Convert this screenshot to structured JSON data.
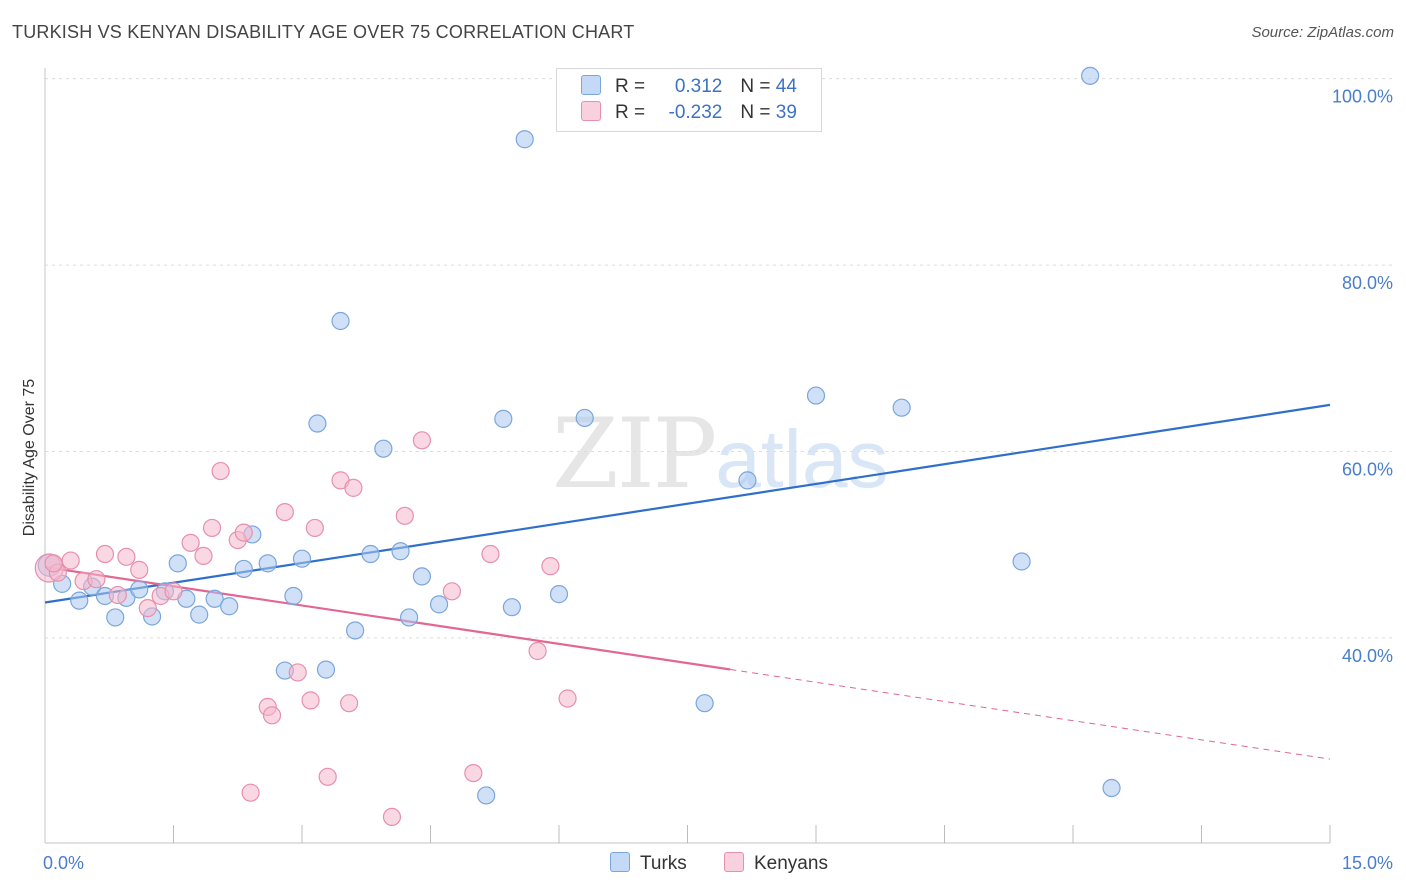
{
  "header": {
    "title": "TURKISH VS KENYAN DISABILITY AGE OVER 75 CORRELATION CHART",
    "source": "Source: ZipAtlas.com"
  },
  "watermark": {
    "zip": "ZIP",
    "atlas": "atlas"
  },
  "legend": {
    "rows": [
      {
        "r_label": "R = ",
        "r_value": "0.312",
        "n_label": "N = ",
        "n_value": "44",
        "color": "#a9c8f0"
      },
      {
        "r_label": "R = ",
        "r_value": "-0.232",
        "n_label": "N = ",
        "n_value": "39",
        "color": "#f5b8cc"
      }
    ]
  },
  "bottom_legend": {
    "turks": "Turks",
    "kenyans": "Kenyans"
  },
  "chart_data": {
    "type": "scatter",
    "title": "TURKISH VS KENYAN DISABILITY AGE OVER 75 CORRELATION CHART",
    "xlabel": "",
    "ylabel": "Disability Age Over 75",
    "xlim": [
      0,
      15
    ],
    "ylim": [
      18,
      102
    ],
    "x_tick_labels": [
      {
        "value": 0,
        "label": "0.0%"
      },
      {
        "value": 15,
        "label": "15.0%"
      }
    ],
    "x_minor_ticks": [
      1.5,
      3.0,
      4.5,
      6.0,
      7.5,
      9.0,
      10.5,
      12.0,
      13.5
    ],
    "y_ticks": [
      {
        "value": 100,
        "label": "100.0%"
      },
      {
        "value": 80,
        "label": "80.0%"
      },
      {
        "value": 60,
        "label": "60.0%"
      },
      {
        "value": 40,
        "label": "40.0%"
      }
    ],
    "series": [
      {
        "name": "Turks",
        "color": "#a9c8f0",
        "edge": "#7aa6dc",
        "line_color": "#2f6fcc",
        "trend": {
          "x0": 0,
          "y0": 43.8,
          "x1": 15,
          "y1": 65.0,
          "solid_until": 15
        },
        "points": [
          [
            0.05,
            47.8
          ],
          [
            0.2,
            45.8
          ],
          [
            0.4,
            44.0
          ],
          [
            0.55,
            45.5
          ],
          [
            0.7,
            44.5
          ],
          [
            0.82,
            42.2
          ],
          [
            0.95,
            44.3
          ],
          [
            1.1,
            45.2
          ],
          [
            1.25,
            42.3
          ],
          [
            1.4,
            45.0
          ],
          [
            1.55,
            48.0
          ],
          [
            1.65,
            44.2
          ],
          [
            1.8,
            42.5
          ],
          [
            1.98,
            44.2
          ],
          [
            2.15,
            43.4
          ],
          [
            2.32,
            47.4
          ],
          [
            2.42,
            51.1
          ],
          [
            2.6,
            48.0
          ],
          [
            2.8,
            36.5
          ],
          [
            2.9,
            44.5
          ],
          [
            3.0,
            48.5
          ],
          [
            3.18,
            63.0
          ],
          [
            3.28,
            36.6
          ],
          [
            3.45,
            74.0
          ],
          [
            3.62,
            40.8
          ],
          [
            3.8,
            49.0
          ],
          [
            3.95,
            60.3
          ],
          [
            4.15,
            49.3
          ],
          [
            4.25,
            42.2
          ],
          [
            4.4,
            46.6
          ],
          [
            4.6,
            43.6
          ],
          [
            5.15,
            23.1
          ],
          [
            5.35,
            63.5
          ],
          [
            5.45,
            43.3
          ],
          [
            5.6,
            93.5
          ],
          [
            6.0,
            44.7
          ],
          [
            6.3,
            63.6
          ],
          [
            7.7,
            33.0
          ],
          [
            8.2,
            56.9
          ],
          [
            9.0,
            66.0
          ],
          [
            10.0,
            64.7
          ],
          [
            11.4,
            48.2
          ],
          [
            12.2,
            100.3
          ],
          [
            12.45,
            23.9
          ]
        ]
      },
      {
        "name": "Kenyans",
        "color": "#f5b8cc",
        "edge": "#e690ad",
        "line_color": "#e26794",
        "trend": {
          "x0": 0,
          "y0": 47.6,
          "x1": 15,
          "y1": 27.0,
          "solid_until": 8.0
        },
        "points": [
          [
            0.05,
            47.5
          ],
          [
            0.15,
            47.0
          ],
          [
            0.3,
            48.3
          ],
          [
            0.45,
            46.1
          ],
          [
            0.6,
            46.3
          ],
          [
            0.7,
            49.0
          ],
          [
            0.85,
            44.6
          ],
          [
            0.95,
            48.7
          ],
          [
            1.1,
            47.3
          ],
          [
            1.2,
            43.2
          ],
          [
            1.35,
            44.5
          ],
          [
            1.5,
            45.0
          ],
          [
            1.7,
            50.2
          ],
          [
            1.85,
            48.8
          ],
          [
            1.95,
            51.8
          ],
          [
            2.05,
            57.9
          ],
          [
            2.25,
            50.5
          ],
          [
            2.32,
            51.3
          ],
          [
            2.4,
            23.4
          ],
          [
            2.6,
            32.6
          ],
          [
            2.65,
            31.7
          ],
          [
            2.8,
            53.5
          ],
          [
            2.95,
            36.3
          ],
          [
            3.1,
            33.3
          ],
          [
            3.15,
            51.8
          ],
          [
            3.3,
            25.1
          ],
          [
            3.45,
            56.9
          ],
          [
            3.55,
            33.0
          ],
          [
            3.6,
            56.1
          ],
          [
            4.05,
            20.8
          ],
          [
            4.2,
            53.1
          ],
          [
            4.4,
            61.2
          ],
          [
            4.75,
            45.0
          ],
          [
            5.0,
            25.5
          ],
          [
            5.2,
            49.0
          ],
          [
            5.75,
            38.6
          ],
          [
            5.9,
            47.7
          ],
          [
            6.1,
            33.5
          ],
          [
            0.1,
            48.0
          ]
        ]
      }
    ]
  }
}
